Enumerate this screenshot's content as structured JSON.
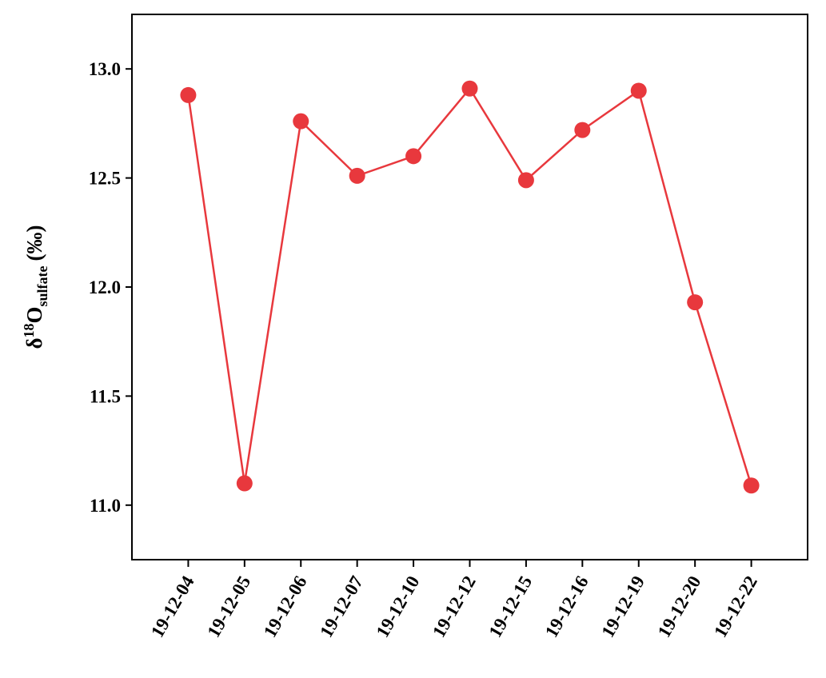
{
  "chart_data": {
    "type": "line",
    "ylabel_parts": [
      "δ",
      "18",
      "O",
      "sulfate",
      "(‰)"
    ],
    "categories": [
      "19-12-04",
      "19-12-05",
      "19-12-06",
      "19-12-07",
      "19-12-10",
      "19-12-12",
      "19-12-15",
      "19-12-16",
      "19-12-19",
      "19-12-20",
      "19-12-22"
    ],
    "series": [
      {
        "color": "#e8383d",
        "values": [
          12.88,
          11.1,
          12.76,
          12.51,
          12.6,
          12.91,
          12.49,
          12.72,
          12.9,
          11.93,
          11.09
        ]
      }
    ],
    "ylim": [
      10.75,
      13.25
    ],
    "yticks": [
      {
        "value": 11,
        "label": "11.0"
      },
      {
        "value": 11.5,
        "label": "11.5"
      },
      {
        "value": 12,
        "label": "12.0"
      },
      {
        "value": 12.5,
        "label": "12.5"
      },
      {
        "value": 13,
        "label": "13.0"
      }
    ],
    "grid": false
  }
}
